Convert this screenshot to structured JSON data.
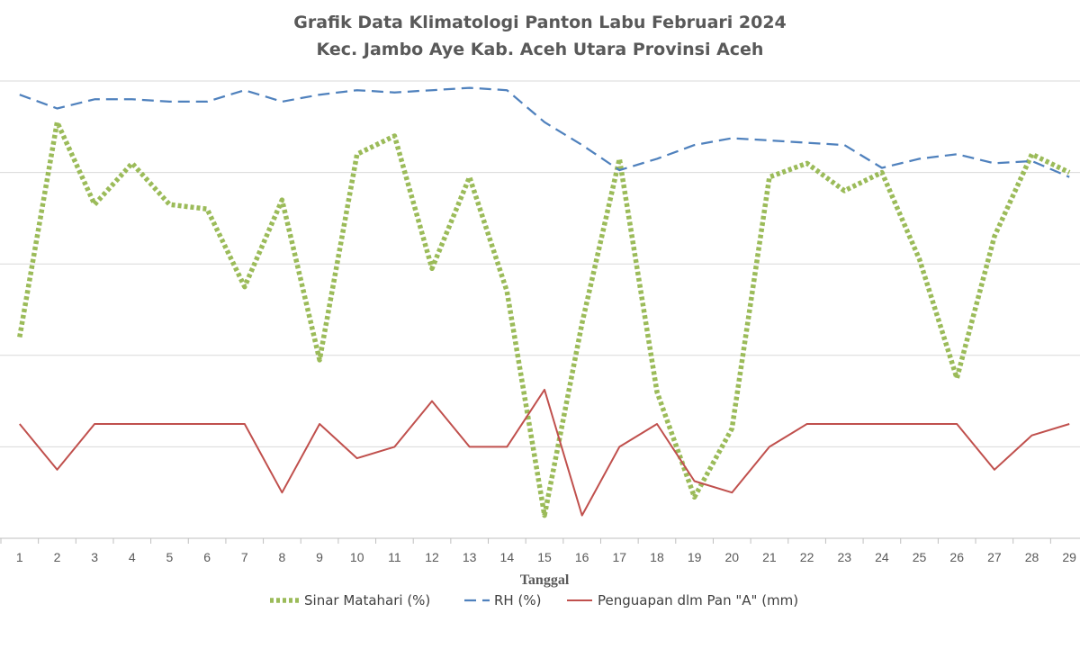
{
  "colors": {
    "sinar": "#9bbb59",
    "rh": "#4f81bd",
    "penguapan": "#c0504d",
    "grid": "#d9d9d9",
    "text": "#595959"
  },
  "chart_data": {
    "type": "line",
    "title_line1": "Grafik Data Klimatologi Panton Labu Februari 2024",
    "title_line2": "Kec. Jambo Aye Kab. Aceh Utara Provinsi Aceh",
    "xlabel": "Tanggal",
    "ylabel": "",
    "x": [
      1,
      2,
      3,
      4,
      5,
      6,
      7,
      8,
      9,
      10,
      11,
      12,
      13,
      14,
      15,
      16,
      17,
      18,
      19,
      20,
      21,
      22,
      23,
      24,
      25,
      26,
      27,
      28,
      29
    ],
    "grid": true,
    "legend_position": "bottom",
    "y_axis_labels_visible": false,
    "ylim": [
      0,
      100
    ],
    "series": [
      {
        "name": "Sinar Matahari (%)",
        "color_key": "sinar",
        "style": "dotted",
        "values": [
          44,
          91,
          73,
          82,
          73,
          72,
          55,
          74,
          39,
          84,
          88,
          59,
          79,
          54,
          5,
          47,
          83,
          32,
          9,
          24,
          79,
          82,
          76,
          80,
          61,
          35,
          66,
          84,
          80
        ]
      },
      {
        "name": "RH (%)",
        "color_key": "rh",
        "style": "dashed",
        "values": [
          97,
          94,
          96,
          96,
          95.5,
          95.5,
          98,
          95.5,
          97,
          98,
          97.5,
          98,
          98.5,
          98,
          91,
          86,
          80.5,
          83,
          86,
          87.5,
          87,
          86.5,
          86,
          81,
          83,
          84,
          82,
          82.5,
          79
        ]
      },
      {
        "name": "Penguapan dlm Pan \"A\" (mm)",
        "color_key": "penguapan",
        "style": "solid",
        "values": [
          25,
          15,
          25,
          25,
          25,
          25,
          25,
          10,
          25,
          17.5,
          20,
          30,
          20,
          20,
          32.5,
          5,
          20,
          25,
          12.5,
          10,
          20,
          25,
          25,
          25,
          25,
          25,
          15,
          22.5,
          25
        ]
      }
    ]
  }
}
